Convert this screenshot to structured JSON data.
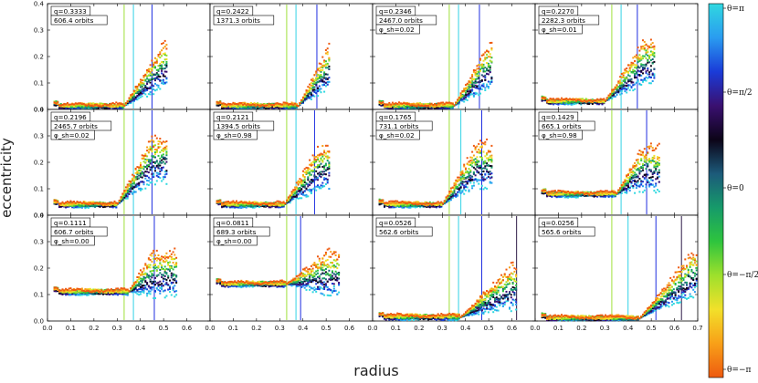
{
  "figure": {
    "xlabel": "radius",
    "ylabel": "eccentricity",
    "x_ticks": [
      "0.0",
      "0.1",
      "0.2",
      "0.3",
      "0.4",
      "0.5",
      "0.6",
      "0.7"
    ],
    "y_ticks": [
      "0.0",
      "0.1",
      "0.2",
      "0.3",
      "0.4"
    ]
  },
  "colorbar": {
    "labels": [
      "θ=π",
      "θ=π/2",
      "θ=0",
      "θ=−π/2",
      "θ=−π"
    ],
    "colors": [
      "#30d8e0",
      "#2a9cf0",
      "#1a3bd8",
      "#3a1070",
      "#0c0418",
      "#1c5a7a",
      "#169a6a",
      "#2ec43e",
      "#9ee02c",
      "#f2e02a",
      "#f8a018",
      "#ee5a10"
    ]
  },
  "chart_data": [
    {
      "type": "scatter",
      "panel": "r1c1",
      "q": "q=0.3333",
      "orbits": "606.4 orbits",
      "phi": "",
      "xlim": [
        0,
        0.7
      ],
      "ylim": [
        0,
        0.4
      ],
      "vlines": [
        0.33,
        0.37,
        0.45
      ],
      "profile": {
        "flat": 0.013,
        "rise_start": 0.33,
        "peak": 0.28,
        "peak_x": 0.5,
        "end": 0.52
      }
    },
    {
      "type": "scatter",
      "panel": "r1c2",
      "q": "q=0.2422",
      "orbits": "1371.3 orbits",
      "phi": "",
      "xlim": [
        0,
        0.7
      ],
      "ylim": [
        0,
        0.4
      ],
      "vlines": [
        0.33,
        0.37,
        0.46
      ],
      "profile": {
        "flat": 0.013,
        "rise_start": 0.38,
        "peak": 0.28,
        "peak_x": 0.52,
        "end": 0.52
      }
    },
    {
      "type": "scatter",
      "panel": "r1c3",
      "q": "q=0.2346",
      "orbits": "2467.0 orbits",
      "phi": "φ_sh=0.02",
      "xlim": [
        0,
        0.7
      ],
      "ylim": [
        0,
        0.4
      ],
      "vlines": [
        0.33,
        0.37,
        0.46
      ],
      "profile": {
        "flat": 0.013,
        "rise_start": 0.35,
        "peak": 0.27,
        "peak_x": 0.5,
        "end": 0.52
      }
    },
    {
      "type": "scatter",
      "panel": "r1c4",
      "q": "q=0.2270",
      "orbits": "2282.3 orbits",
      "phi": "φ_sh=0.01",
      "xlim": [
        0,
        0.7
      ],
      "ylim": [
        0,
        0.4
      ],
      "vlines": [
        0.33,
        0.37,
        0.44
      ],
      "profile": {
        "flat": 0.03,
        "rise_start": 0.3,
        "peak": 0.3,
        "peak_x": 0.47,
        "end": 0.52
      }
    },
    {
      "type": "scatter",
      "panel": "r2c1",
      "q": "q=0.2196",
      "orbits": "2465.7 orbits",
      "phi": "φ_sh=0.02",
      "xlim": [
        0,
        0.7
      ],
      "ylim": [
        0,
        0.4
      ],
      "vlines": [
        0.33,
        0.37,
        0.45
      ],
      "profile": {
        "flat": 0.04,
        "rise_start": 0.3,
        "peak": 0.35,
        "peak_x": 0.45,
        "end": 0.52
      }
    },
    {
      "type": "scatter",
      "panel": "r2c2",
      "q": "q=0.2121",
      "orbits": "1394.5 orbits",
      "phi": "φ_sh=0.98",
      "xlim": [
        0,
        0.7
      ],
      "ylim": [
        0,
        0.4
      ],
      "vlines": [
        0.33,
        0.37,
        0.45
      ],
      "profile": {
        "flat": 0.04,
        "rise_start": 0.32,
        "peak": 0.3,
        "peak_x": 0.47,
        "end": 0.52
      }
    },
    {
      "type": "scatter",
      "panel": "r2c3",
      "q": "q=0.1765",
      "orbits": "731.1 orbits",
      "phi": "φ_sh=0.02",
      "xlim": [
        0,
        0.7
      ],
      "ylim": [
        0,
        0.4
      ],
      "vlines": [
        0.33,
        0.38,
        0.47
      ],
      "profile": {
        "flat": 0.04,
        "rise_start": 0.3,
        "peak": 0.32,
        "peak_x": 0.45,
        "end": 0.52
      }
    },
    {
      "type": "scatter",
      "panel": "r2c4",
      "q": "q=0.1429",
      "orbits": "665.1 orbits",
      "phi": "φ_sh=0.98",
      "xlim": [
        0,
        0.7
      ],
      "ylim": [
        0,
        0.4
      ],
      "vlines": [
        0.33,
        0.37,
        0.48
      ],
      "profile": {
        "flat": 0.08,
        "rise_start": 0.35,
        "peak": 0.3,
        "peak_x": 0.46,
        "end": 0.54
      }
    },
    {
      "type": "scatter",
      "panel": "r3c1",
      "q": "q=0.1111",
      "orbits": "606.7 orbits",
      "phi": "φ_sh=0.00",
      "xlim": [
        0,
        0.7
      ],
      "ylim": [
        0,
        0.4
      ],
      "vlines": [
        0.33,
        0.37,
        0.46
      ],
      "profile": {
        "flat": 0.11,
        "rise_start": 0.35,
        "peak": 0.3,
        "peak_x": 0.45,
        "end": 0.56
      }
    },
    {
      "type": "scatter",
      "panel": "r3c2",
      "q": "q=0.0811",
      "orbits": "689.3 orbits",
      "phi": "φ_sh=0.00",
      "xlim": [
        0,
        0.7
      ],
      "ylim": [
        0,
        0.4
      ],
      "vlines": [
        0.33,
        0.37,
        0.39
      ],
      "profile": {
        "flat": 0.14,
        "rise_start": 0.33,
        "peak": 0.3,
        "peak_x": 0.5,
        "end": 0.56
      }
    },
    {
      "type": "scatter",
      "panel": "r3c3",
      "q": "q=0.0526",
      "orbits": "562.6 orbits",
      "phi": "",
      "xlim": [
        0,
        0.7
      ],
      "ylim": [
        0,
        0.4
      ],
      "vlines": [
        0.33,
        0.37,
        0.47,
        0.62
      ],
      "profile": {
        "flat": 0.015,
        "rise_start": 0.38,
        "peak": 0.22,
        "peak_x": 0.6,
        "end": 0.62
      }
    },
    {
      "type": "scatter",
      "panel": "r3c4",
      "q": "q=0.0256",
      "orbits": "565.6 orbits",
      "phi": "",
      "xlim": [
        0,
        0.7
      ],
      "ylim": [
        0,
        0.4
      ],
      "vlines": [
        0.33,
        0.4,
        0.52,
        0.63
      ],
      "profile": {
        "flat": 0.01,
        "rise_start": 0.45,
        "peak": 0.3,
        "peak_x": 0.68,
        "end": 0.7
      }
    }
  ]
}
